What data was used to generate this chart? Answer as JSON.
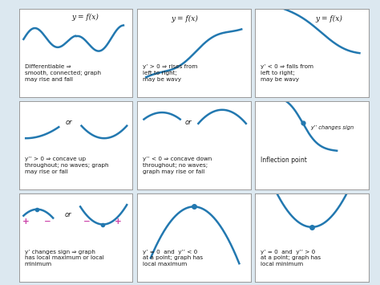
{
  "bg_color": "#dce8f0",
  "cell_bg": "#ffffff",
  "curve_color": "#2278b0",
  "curve_lw": 1.8,
  "dot_color": "#2278b0",
  "sign_color_plus": "#cc44aa",
  "sign_color_minus": "#cc44aa",
  "text_color": "#1a1a1a",
  "grid_line_color": "#999999",
  "label_color": "#1a1a1a",
  "cell_texts": [
    "Differentiable ⇒\nsmooth, connected; graph\nmay rise and fall",
    "y’ > 0 ⇒ rises from\nleft to right;\nmay be wavy",
    "y’ < 0 ⇒ falls from\nleft to right;\nmay be wavy",
    "y’’ > 0 ⇒ concave up\nthroughout; no waves; graph\nmay rise or fall",
    "y’’ < 0 ⇒ concave down\nthroughout; no waves;\ngraph may rise or fall",
    "Inflection point",
    "y’ changes sign ⇒ graph\nhas local maximum or local\nminimum",
    "y’ = 0  and  y’’ < 0\nat a point; graph has\nlocal maximum",
    "y’ = 0  and  y’’ > 0\nat a point; graph has\nlocal minimum"
  ]
}
